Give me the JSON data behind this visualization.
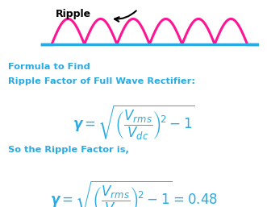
{
  "bg_color": "#ffffff",
  "cyan_color": "#29ABE2",
  "pink_color": "#FF1493",
  "text_color": "#29ABE2",
  "ripple_label": "Ripple",
  "formula_label1": "Formula to Find",
  "formula_label2": "Ripple Factor of Full Wave Rectifier:",
  "ripple_factor_label": "So the Ripple Factor is,"
}
